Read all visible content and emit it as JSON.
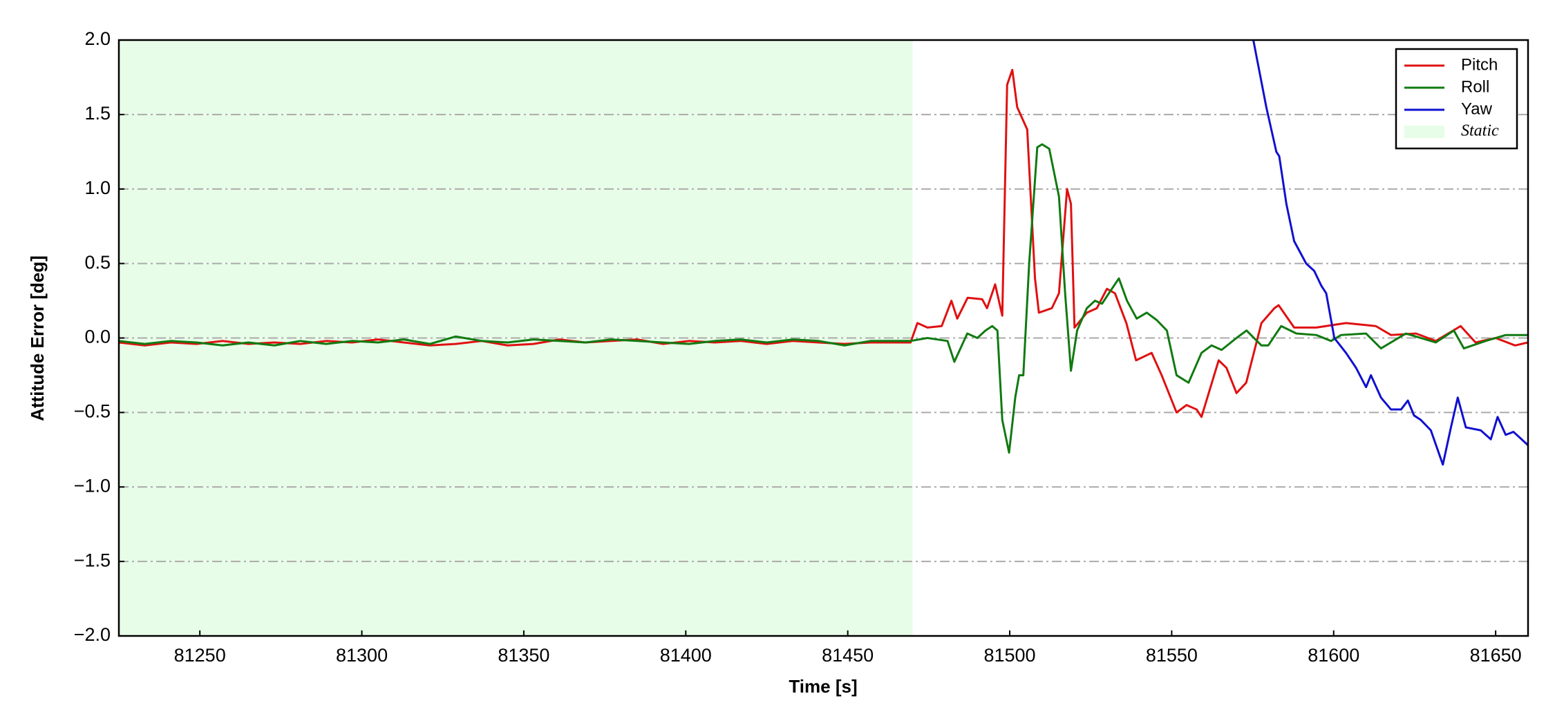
{
  "chart_data": {
    "type": "line",
    "xlabel": "Time [s]",
    "ylabel": "Attitude Error [deg]",
    "xlim": [
      81225,
      81660
    ],
    "ylim": [
      -2.0,
      2.0
    ],
    "xticks": [
      81250,
      81300,
      81350,
      81400,
      81450,
      81500,
      81550,
      81600,
      81650
    ],
    "yticks": [
      {
        "value": -2.0,
        "label": "−2.0"
      },
      {
        "value": -1.5,
        "label": "−1.5"
      },
      {
        "value": -1.0,
        "label": "−1.0"
      },
      {
        "value": -0.5,
        "label": "−0.5"
      },
      {
        "value": 0.0,
        "label": "0.0"
      },
      {
        "value": 0.5,
        "label": "0.5"
      },
      {
        "value": 1.0,
        "label": "1.0"
      },
      {
        "value": 1.5,
        "label": "1.5"
      },
      {
        "value": 2.0,
        "label": "2.0"
      }
    ],
    "grid": true,
    "legend": "upper right",
    "shaded_regions": [
      {
        "label": "Static",
        "xlim": [
          81225,
          81470
        ],
        "color": "#e8fde8"
      }
    ],
    "series": [
      {
        "name": "Pitch",
        "color": "#e01010",
        "x": [
          81225,
          81233,
          81241,
          81249,
          81257,
          81265,
          81273,
          81281,
          81289,
          81297,
          81305,
          81313,
          81321,
          81329,
          81337,
          81345,
          81353,
          81361,
          81369,
          81377,
          81385,
          81393,
          81401,
          81409,
          81417,
          81425,
          81433,
          81441,
          81449,
          81457,
          81465,
          81469.4,
          81471.5,
          81474.6,
          81479,
          81482,
          81483.8,
          81487,
          81491.5,
          81493,
          81495.5,
          81497.7,
          81499.2,
          81500.8,
          81502.3,
          81505.4,
          81507.8,
          81509,
          81513,
          81515.2,
          81517.7,
          81518.9,
          81520,
          81523.8,
          81526.9,
          81530,
          81532.5,
          81536,
          81539,
          81543.8,
          81546.9,
          81551.5,
          81554.6,
          81557.7,
          81559.2,
          81564.5,
          81566.9,
          81570,
          81573,
          81577.7,
          81581.7,
          81583,
          81587.8,
          81594.6,
          81603.8,
          81613,
          81617.7,
          81625.4,
          81631.5,
          81639.2,
          81643.8,
          81650,
          81656,
          81660
        ],
        "values": [
          -0.03,
          -0.05,
          -0.03,
          -0.04,
          -0.02,
          -0.04,
          -0.03,
          -0.04,
          -0.02,
          -0.03,
          -0.01,
          -0.03,
          -0.05,
          -0.04,
          -0.02,
          -0.05,
          -0.04,
          -0.01,
          -0.03,
          -0.02,
          -0.01,
          -0.04,
          -0.02,
          -0.03,
          -0.02,
          -0.04,
          -0.02,
          -0.03,
          -0.04,
          -0.03,
          -0.03,
          -0.03,
          0.1,
          0.07,
          0.08,
          0.25,
          0.13,
          0.27,
          0.26,
          0.2,
          0.36,
          0.15,
          1.7,
          1.8,
          1.55,
          1.4,
          0.4,
          0.17,
          0.2,
          0.3,
          1.0,
          0.9,
          0.07,
          0.17,
          0.2,
          0.33,
          0.3,
          0.1,
          -0.15,
          -0.1,
          -0.25,
          -0.5,
          -0.45,
          -0.48,
          -0.53,
          -0.15,
          -0.2,
          -0.37,
          -0.3,
          0.1,
          0.2,
          0.22,
          0.07,
          0.07,
          0.1,
          0.08,
          0.02,
          0.03,
          -0.02,
          0.08,
          -0.03,
          0.0,
          -0.05,
          -0.03
        ]
      },
      {
        "name": "Roll",
        "color": "#107a10",
        "x": [
          81225,
          81233,
          81241,
          81249,
          81257,
          81265,
          81273,
          81281,
          81289,
          81297,
          81305,
          81313,
          81321,
          81329,
          81337,
          81345,
          81353,
          81361,
          81369,
          81377,
          81385,
          81393,
          81401,
          81409,
          81417,
          81425,
          81433,
          81441,
          81449,
          81457,
          81465,
          81469.4,
          81474.6,
          81480.8,
          81482.9,
          81486.9,
          81490,
          81492.5,
          81494.6,
          81496.2,
          81497.7,
          81499.8,
          81501.7,
          81502.9,
          81504.2,
          81506,
          81508.5,
          81510,
          81512.2,
          81515.2,
          81517.1,
          81518.9,
          81520.8,
          81523.8,
          81526.3,
          81528.5,
          81530.6,
          81533.7,
          81536.2,
          81539.2,
          81542.3,
          81545.4,
          81548.5,
          81551.5,
          81555.2,
          81559.2,
          81562.3,
          81565.4,
          81570,
          81573.1,
          81577.7,
          81579.8,
          81583.8,
          81588.5,
          81594.6,
          81599.2,
          81602.3,
          81610,
          81614.6,
          81622.3,
          81631.5,
          81637.1,
          81640.2,
          81646.9,
          81653.1,
          81660
        ],
        "values": [
          -0.02,
          -0.04,
          -0.02,
          -0.03,
          -0.05,
          -0.03,
          -0.05,
          -0.02,
          -0.04,
          -0.02,
          -0.03,
          -0.01,
          -0.04,
          0.01,
          -0.02,
          -0.03,
          -0.01,
          -0.02,
          -0.03,
          -0.01,
          -0.02,
          -0.03,
          -0.04,
          -0.02,
          -0.01,
          -0.03,
          -0.01,
          -0.02,
          -0.05,
          -0.02,
          -0.02,
          -0.02,
          0.0,
          -0.02,
          -0.16,
          0.03,
          0.0,
          0.05,
          0.08,
          0.05,
          -0.55,
          -0.77,
          -0.4,
          -0.25,
          -0.25,
          0.5,
          1.28,
          1.3,
          1.27,
          0.95,
          0.3,
          -0.22,
          0.05,
          0.2,
          0.25,
          0.23,
          0.3,
          0.4,
          0.25,
          0.13,
          0.17,
          0.12,
          0.05,
          -0.25,
          -0.3,
          -0.1,
          -0.05,
          -0.08,
          0.0,
          0.05,
          -0.05,
          -0.05,
          0.08,
          0.03,
          0.02,
          -0.02,
          0.02,
          0.03,
          -0.07,
          0.03,
          -0.03,
          0.05,
          -0.07,
          -0.02,
          0.02,
          0.02
        ]
      },
      {
        "name": "Yaw",
        "color": "#1010d0",
        "x": [
          81575.2,
          81579.2,
          81582.3,
          81583.2,
          81585.4,
          81587.8,
          81591.5,
          81594,
          81596.2,
          81597.7,
          81600.2,
          81603.8,
          81606.9,
          81610,
          81611.5,
          81614.6,
          81617.7,
          81620.8,
          81622.9,
          81624.8,
          81626.9,
          81630,
          81633.7,
          81636.2,
          81638.3,
          81640.8,
          81645.4,
          81648.5,
          81650.6,
          81653.1,
          81655.5,
          81660
        ],
        "values": [
          2.0,
          1.55,
          1.25,
          1.22,
          0.9,
          0.65,
          0.5,
          0.45,
          0.35,
          0.3,
          0.0,
          -0.1,
          -0.2,
          -0.33,
          -0.25,
          -0.4,
          -0.48,
          -0.48,
          -0.42,
          -0.52,
          -0.55,
          -0.62,
          -0.85,
          -0.6,
          -0.4,
          -0.6,
          -0.62,
          -0.68,
          -0.53,
          -0.65,
          -0.63,
          -0.72
        ]
      }
    ]
  }
}
